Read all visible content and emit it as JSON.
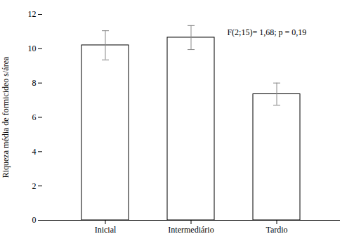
{
  "chart_data": {
    "type": "bar",
    "categories": [
      "Inicial",
      "Intermediário",
      "Tardio"
    ],
    "values": [
      10.2,
      10.65,
      7.35
    ],
    "errors": [
      0.85,
      0.7,
      0.65
    ],
    "color": "#ffffff",
    "ylabel": "Riqueza média de formicideo s/área",
    "ylim": [
      0,
      12
    ],
    "yticks": [
      0,
      2,
      4,
      6,
      8,
      10,
      12
    ],
    "annotation": "F(2;15)= 1,68; p = 0,19",
    "grid": false
  }
}
